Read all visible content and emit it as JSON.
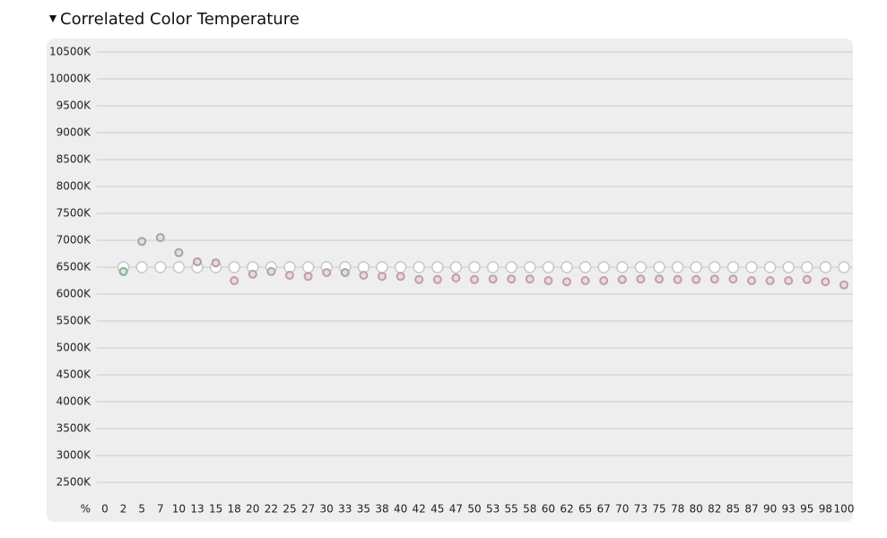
{
  "chart_data": {
    "type": "scatter",
    "title": "Correlated Color Temperature",
    "x_unit_label": "%",
    "categories": [
      "0",
      "2",
      "5",
      "7",
      "10",
      "13",
      "15",
      "18",
      "20",
      "22",
      "25",
      "27",
      "30",
      "33",
      "35",
      "38",
      "40",
      "42",
      "45",
      "47",
      "50",
      "53",
      "55",
      "58",
      "60",
      "62",
      "65",
      "67",
      "70",
      "73",
      "75",
      "78",
      "80",
      "82",
      "85",
      "87",
      "90",
      "93",
      "95",
      "98",
      "100"
    ],
    "series": [
      {
        "color": "#c8c8c8",
        "values": [
          null,
          6500,
          6500,
          6500,
          6500,
          6500,
          6500,
          6500,
          6500,
          6500,
          6500,
          6500,
          6500,
          6500,
          6500,
          6500,
          6500,
          6500,
          6500,
          6500,
          6500,
          6500,
          6500,
          6500,
          6500,
          6500,
          6500,
          6500,
          6500,
          6500,
          6500,
          6500,
          6500,
          6500,
          6500,
          6500,
          6500,
          6500,
          6500,
          6500,
          6500
        ]
      },
      {
        "colors": [
          null,
          "#7fb38a",
          "#8fae9a",
          "#a8a0b4",
          "#a8a0b4",
          "#b99aa6",
          "#b99aa6",
          "#c39ca6",
          "#b8a0ac",
          "#b0a2b0",
          "#c39ca6",
          "#c39ca6",
          "#b8a0ac",
          "#a8a0b4",
          "#c39ca6",
          "#c39ca6",
          "#c39ca6",
          "#c39ca6",
          "#c39ca6",
          "#c39ca6",
          "#c39ca6",
          "#c39ca6",
          "#c39ca6",
          "#c39ca6",
          "#c39ca6",
          "#c39ca6",
          "#c39ca6",
          "#c39ca6",
          "#c39ca6",
          "#c39ca6",
          "#c39ca6",
          "#c39ca6",
          "#c39ca6",
          "#c39ca6",
          "#c39ca6",
          "#c39ca6",
          "#c39ca6",
          "#c39ca6",
          "#c39ca6",
          "#c39ca6",
          "#c39ca6"
        ],
        "values": [
          null,
          6420,
          6980,
          7050,
          6770,
          6600,
          6580,
          6250,
          6370,
          6420,
          6350,
          6330,
          6400,
          6400,
          6350,
          6330,
          6330,
          6270,
          6270,
          6300,
          6270,
          6280,
          6280,
          6280,
          6250,
          6230,
          6250,
          6250,
          6270,
          6280,
          6280,
          6270,
          6270,
          6280,
          6280,
          6250,
          6250,
          6250,
          6270,
          6230,
          6170
        ]
      }
    ],
    "ylim": [
      2000,
      10500
    ],
    "yticks": [
      {
        "value": 2500,
        "label": "2500K"
      },
      {
        "value": 3000,
        "label": "3000K"
      },
      {
        "value": 3500,
        "label": "3500K"
      },
      {
        "value": 4000,
        "label": "4000K"
      },
      {
        "value": 4500,
        "label": "4500K"
      },
      {
        "value": 5000,
        "label": "5000K"
      },
      {
        "value": 5500,
        "label": "5500K"
      },
      {
        "value": 6000,
        "label": "6000K"
      },
      {
        "value": 6500,
        "label": "6500K"
      },
      {
        "value": 7000,
        "label": "7000K"
      },
      {
        "value": 7500,
        "label": "7500K"
      },
      {
        "value": 8000,
        "label": "8000K"
      },
      {
        "value": 8500,
        "label": "8500K"
      },
      {
        "value": 9000,
        "label": "9000K"
      },
      {
        "value": 9500,
        "label": "9500K"
      },
      {
        "value": 10000,
        "label": "10000K"
      },
      {
        "value": 10500,
        "label": "10500K"
      }
    ],
    "grid": true
  }
}
